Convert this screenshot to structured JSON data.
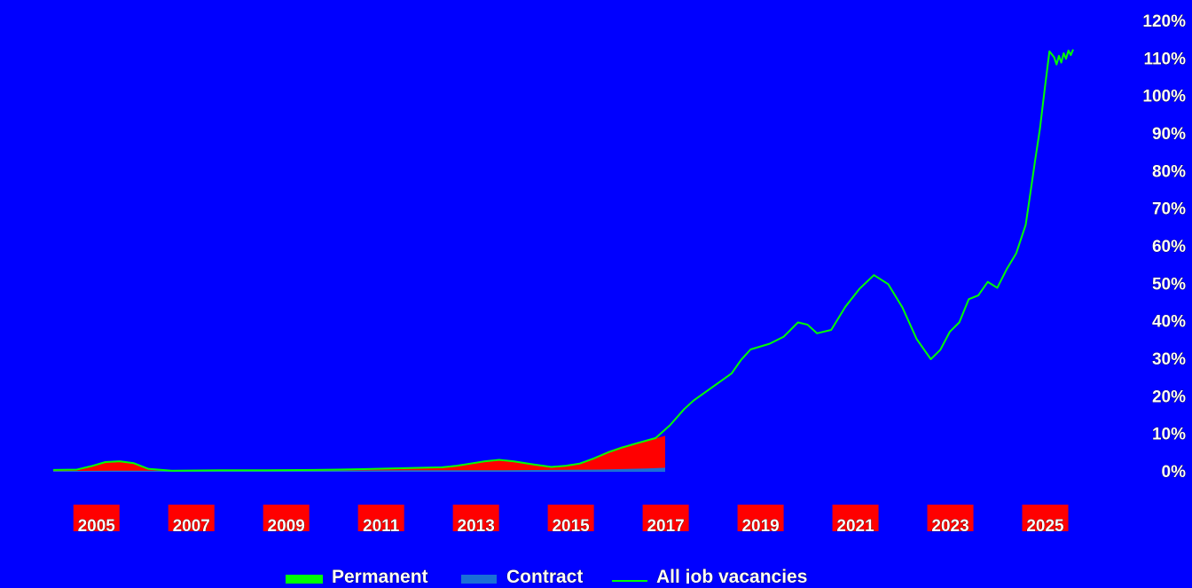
{
  "chart_data": {
    "type": "area",
    "x_ticks": [
      "2005",
      "2007",
      "2009",
      "2011",
      "2013",
      "2015",
      "2017",
      "2019",
      "2021",
      "2023",
      "2025"
    ],
    "y_ticks": [
      "0%",
      "10%",
      "20%",
      "30%",
      "40%",
      "50%",
      "60%",
      "70%",
      "80%",
      "90%",
      "100%",
      "110%",
      "120%"
    ],
    "ylim": [
      0,
      120
    ],
    "y_axis_side": "right",
    "grid": false,
    "legend": {
      "position": "bottom",
      "items": [
        {
          "label": "Permanent",
          "color": "#00ff00"
        },
        {
          "label": "Contract",
          "color": "#1a6fd6"
        },
        {
          "label": "All job vacancies",
          "color": "#00ff00"
        }
      ]
    },
    "series": [
      {
        "name": "Permanent",
        "kind": "area",
        "color": "#ff0000",
        "x": [
          2004.5,
          2005.0,
          2005.3,
          2005.6,
          2005.9,
          2006.2,
          2006.5,
          2007.0,
          2008.0,
          2009.0,
          2010.0,
          2011.0,
          2012.0,
          2012.7,
          2013.0,
          2013.3,
          2013.6,
          2013.9,
          2014.2,
          2014.6,
          2015.0,
          2015.3,
          2015.6,
          2015.9,
          2016.2,
          2016.5,
          2016.8,
          2017.0,
          2017.2,
          2017.4
        ],
        "y": [
          0.5,
          0.6,
          1.5,
          2.7,
          2.8,
          2.3,
          1.0,
          0.3,
          0.4,
          0.4,
          0.5,
          0.7,
          1.0,
          1.2,
          1.6,
          2.3,
          3.0,
          3.3,
          2.8,
          2.0,
          1.3,
          1.6,
          2.3,
          3.8,
          5.5,
          6.8,
          7.5,
          8.2,
          8.9,
          9.6
        ]
      },
      {
        "name": "Contract",
        "kind": "area",
        "color": "#1a6fd6",
        "x": [
          2004.5,
          2006.0,
          2008.0,
          2010.0,
          2012.0,
          2014.0,
          2016.0,
          2017.0,
          2017.4
        ],
        "y": [
          0.2,
          0.3,
          0.3,
          0.3,
          0.4,
          0.4,
          0.6,
          0.9,
          1.1
        ]
      },
      {
        "name": "All job vacancies",
        "kind": "line",
        "color": "#00ff00",
        "x": [
          2004.5,
          2005.0,
          2005.3,
          2005.6,
          2005.9,
          2006.2,
          2006.5,
          2007.0,
          2008.0,
          2009.0,
          2010.0,
          2011.0,
          2012.0,
          2012.7,
          2013.0,
          2013.3,
          2013.6,
          2013.9,
          2014.2,
          2014.6,
          2015.0,
          2015.3,
          2015.6,
          2015.9,
          2016.2,
          2016.5,
          2016.8,
          2017.0,
          2017.2,
          2017.5,
          2017.8,
          2018.0,
          2018.4,
          2018.8,
          2019.0,
          2019.2,
          2019.6,
          2019.9,
          2020.2,
          2020.4,
          2020.6,
          2020.9,
          2021.2,
          2021.5,
          2021.8,
          2022.1,
          2022.4,
          2022.7,
          2023.0,
          2023.2,
          2023.4,
          2023.6,
          2023.8,
          2024.0,
          2024.2,
          2024.4,
          2024.6,
          2024.8,
          2025.0,
          2025.1,
          2025.2,
          2025.3,
          2025.4,
          2025.5,
          2025.6,
          2025.65,
          2025.7,
          2025.75,
          2025.8,
          2025.85,
          2025.9,
          2025.95,
          2026.0
        ],
        "y": [
          0.5,
          0.6,
          1.5,
          2.6,
          2.8,
          2.3,
          0.8,
          0.3,
          0.4,
          0.4,
          0.5,
          0.7,
          1.0,
          1.2,
          1.6,
          2.2,
          2.8,
          3.2,
          2.8,
          2.0,
          1.3,
          1.6,
          2.2,
          3.6,
          5.2,
          6.5,
          7.6,
          8.3,
          9.0,
          12.4,
          16.7,
          19.0,
          22.6,
          26.2,
          29.8,
          32.6,
          34.1,
          36.0,
          39.8,
          39.2,
          36.9,
          37.8,
          44.0,
          48.8,
          52.4,
          50.0,
          43.8,
          35.4,
          30.0,
          32.5,
          37.3,
          39.8,
          46.0,
          47.0,
          50.6,
          49.0,
          54.0,
          58.2,
          65.8,
          74.4,
          83.1,
          91.4,
          101.9,
          112.0,
          110.4,
          108.5,
          110.8,
          109.0,
          111.5,
          110.0,
          112.2,
          111.0,
          112.5
        ]
      }
    ]
  }
}
